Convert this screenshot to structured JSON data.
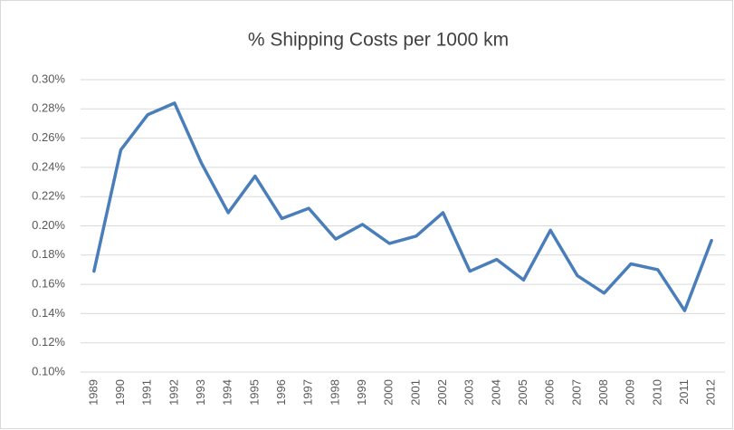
{
  "chart_data": {
    "type": "line",
    "title": "% Shipping Costs per 1000 km",
    "categories": [
      "1989",
      "1990",
      "1991",
      "1992",
      "1993",
      "1994",
      "1995",
      "1996",
      "1997",
      "1998",
      "1999",
      "2000",
      "2001",
      "2002",
      "2003",
      "2004",
      "2005",
      "2006",
      "2007",
      "2008",
      "2009",
      "2010",
      "2011",
      "2012"
    ],
    "series": [
      {
        "name": "% Shipping Costs per 1000 km",
        "color": "#4a7ebb",
        "values": [
          0.169,
          0.252,
          0.276,
          0.284,
          0.243,
          0.209,
          0.234,
          0.205,
          0.212,
          0.191,
          0.201,
          0.188,
          0.193,
          0.209,
          0.169,
          0.177,
          0.163,
          0.197,
          0.166,
          0.154,
          0.174,
          0.17,
          0.142,
          0.19
        ]
      }
    ],
    "ylim": [
      0.1,
      0.3
    ],
    "yticks": [
      {
        "value": 0.1,
        "label": "0.10%"
      },
      {
        "value": 0.12,
        "label": "0.12%"
      },
      {
        "value": 0.14,
        "label": "0.14%"
      },
      {
        "value": 0.16,
        "label": "0.16%"
      },
      {
        "value": 0.18,
        "label": "0.18%"
      },
      {
        "value": 0.2,
        "label": "0.20%"
      },
      {
        "value": 0.22,
        "label": "0.22%"
      },
      {
        "value": 0.24,
        "label": "0.24%"
      },
      {
        "value": 0.26,
        "label": "0.26%"
      },
      {
        "value": 0.28,
        "label": "0.28%"
      },
      {
        "value": 0.3,
        "label": "0.30%"
      }
    ],
    "grid": true
  }
}
